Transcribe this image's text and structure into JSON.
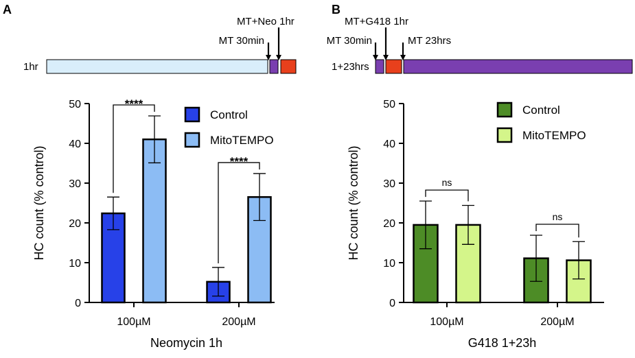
{
  "panel_a_label": "A",
  "panel_b_label": "B",
  "timeline_a": {
    "duration_label": "1hr",
    "arrows": [
      "MT 30min",
      "MT+Neo 1hr"
    ],
    "colors": {
      "pre": "#d9eefb",
      "mt": "#7a3fb0",
      "drug": "#e8401c"
    }
  },
  "timeline_b": {
    "duration_label": "1+23hrs",
    "arrows": [
      "MT 30min",
      "MT+G418 1hr",
      "MT 23hrs"
    ],
    "colors": {
      "mt": "#7a3fb0",
      "drug": "#e8401c"
    }
  },
  "chart_data": [
    {
      "type": "bar",
      "title": "",
      "xlabel": "Neomycin 1h",
      "ylabel": "HC count (% control)",
      "categories": [
        "100µM",
        "200µM"
      ],
      "ylim": [
        0,
        50
      ],
      "yticks": [
        0,
        10,
        20,
        30,
        40,
        50
      ],
      "legend_position": "top-right",
      "series": [
        {
          "name": "Control",
          "color": "#2741e8",
          "values": [
            22.4,
            5.2
          ],
          "errors": [
            4.1,
            3.6
          ]
        },
        {
          "name": "MitoTEMPO",
          "color": "#8cbcf4",
          "values": [
            41.0,
            26.5
          ],
          "errors": [
            5.9,
            5.9
          ]
        }
      ],
      "annotations": [
        {
          "category": "100µM",
          "text": "****"
        },
        {
          "category": "200µM",
          "text": "****"
        }
      ]
    },
    {
      "type": "bar",
      "title": "",
      "xlabel": "G418 1+23h",
      "ylabel": "HC count (% control)",
      "categories": [
        "100µM",
        "200µM"
      ],
      "ylim": [
        0,
        50
      ],
      "yticks": [
        0,
        10,
        20,
        30,
        40,
        50
      ],
      "legend_position": "top-right",
      "series": [
        {
          "name": "Control",
          "color": "#4d8c26",
          "values": [
            19.5,
            11.1
          ],
          "errors": [
            6.0,
            5.8
          ]
        },
        {
          "name": "MitoTEMPO",
          "color": "#d4f58a",
          "values": [
            19.5,
            10.6
          ],
          "errors": [
            4.9,
            4.7
          ]
        }
      ],
      "annotations": [
        {
          "category": "100µM",
          "text": "ns"
        },
        {
          "category": "200µM",
          "text": "ns"
        }
      ]
    }
  ]
}
